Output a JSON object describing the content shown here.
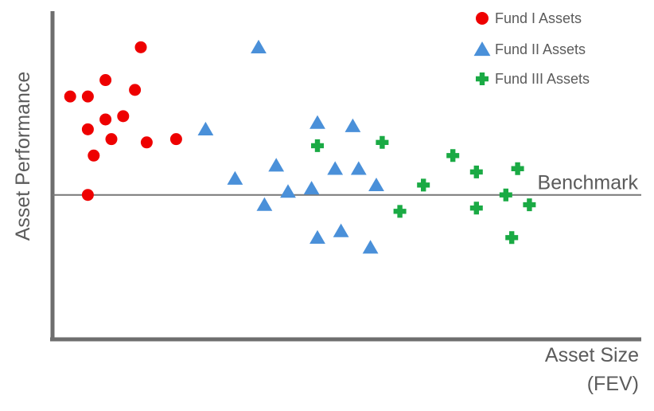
{
  "chart_data": {
    "type": "scatter",
    "xlabel": [
      "Asset Size",
      "(FEV)"
    ],
    "ylabel": "Asset Performance",
    "xlim": [
      0,
      100
    ],
    "ylim": [
      0,
      100
    ],
    "grid": false,
    "legend_position": "top-right",
    "reference_line": {
      "label": "Benchmark",
      "y": 44
    },
    "series": [
      {
        "name": "Fund I Assets",
        "marker": "circle",
        "color": "#ee0000",
        "points": [
          {
            "x": 15,
            "y": 89
          },
          {
            "x": 9,
            "y": 79
          },
          {
            "x": 6,
            "y": 74
          },
          {
            "x": 14,
            "y": 76
          },
          {
            "x": 3,
            "y": 74
          },
          {
            "x": 12,
            "y": 68
          },
          {
            "x": 9,
            "y": 67
          },
          {
            "x": 6,
            "y": 64
          },
          {
            "x": 10,
            "y": 61
          },
          {
            "x": 16,
            "y": 60
          },
          {
            "x": 21,
            "y": 61
          },
          {
            "x": 7,
            "y": 56
          },
          {
            "x": 6,
            "y": 44
          }
        ]
      },
      {
        "name": "Fund II Assets",
        "marker": "triangle",
        "color": "#4a90d9",
        "points": [
          {
            "x": 35,
            "y": 89
          },
          {
            "x": 26,
            "y": 64
          },
          {
            "x": 45,
            "y": 66
          },
          {
            "x": 51,
            "y": 65
          },
          {
            "x": 38,
            "y": 53
          },
          {
            "x": 31,
            "y": 49
          },
          {
            "x": 48,
            "y": 52
          },
          {
            "x": 52,
            "y": 52
          },
          {
            "x": 44,
            "y": 46
          },
          {
            "x": 40,
            "y": 45
          },
          {
            "x": 55,
            "y": 47
          },
          {
            "x": 36,
            "y": 41
          },
          {
            "x": 45,
            "y": 31
          },
          {
            "x": 49,
            "y": 33
          },
          {
            "x": 54,
            "y": 28
          }
        ]
      },
      {
        "name": "Fund III Assets",
        "marker": "cross",
        "color": "#1aaa44",
        "points": [
          {
            "x": 45,
            "y": 59
          },
          {
            "x": 56,
            "y": 60
          },
          {
            "x": 68,
            "y": 56
          },
          {
            "x": 72,
            "y": 51
          },
          {
            "x": 79,
            "y": 52
          },
          {
            "x": 63,
            "y": 47
          },
          {
            "x": 77,
            "y": 44
          },
          {
            "x": 59,
            "y": 39
          },
          {
            "x": 72,
            "y": 40
          },
          {
            "x": 81,
            "y": 41
          },
          {
            "x": 78,
            "y": 31
          }
        ]
      }
    ]
  }
}
